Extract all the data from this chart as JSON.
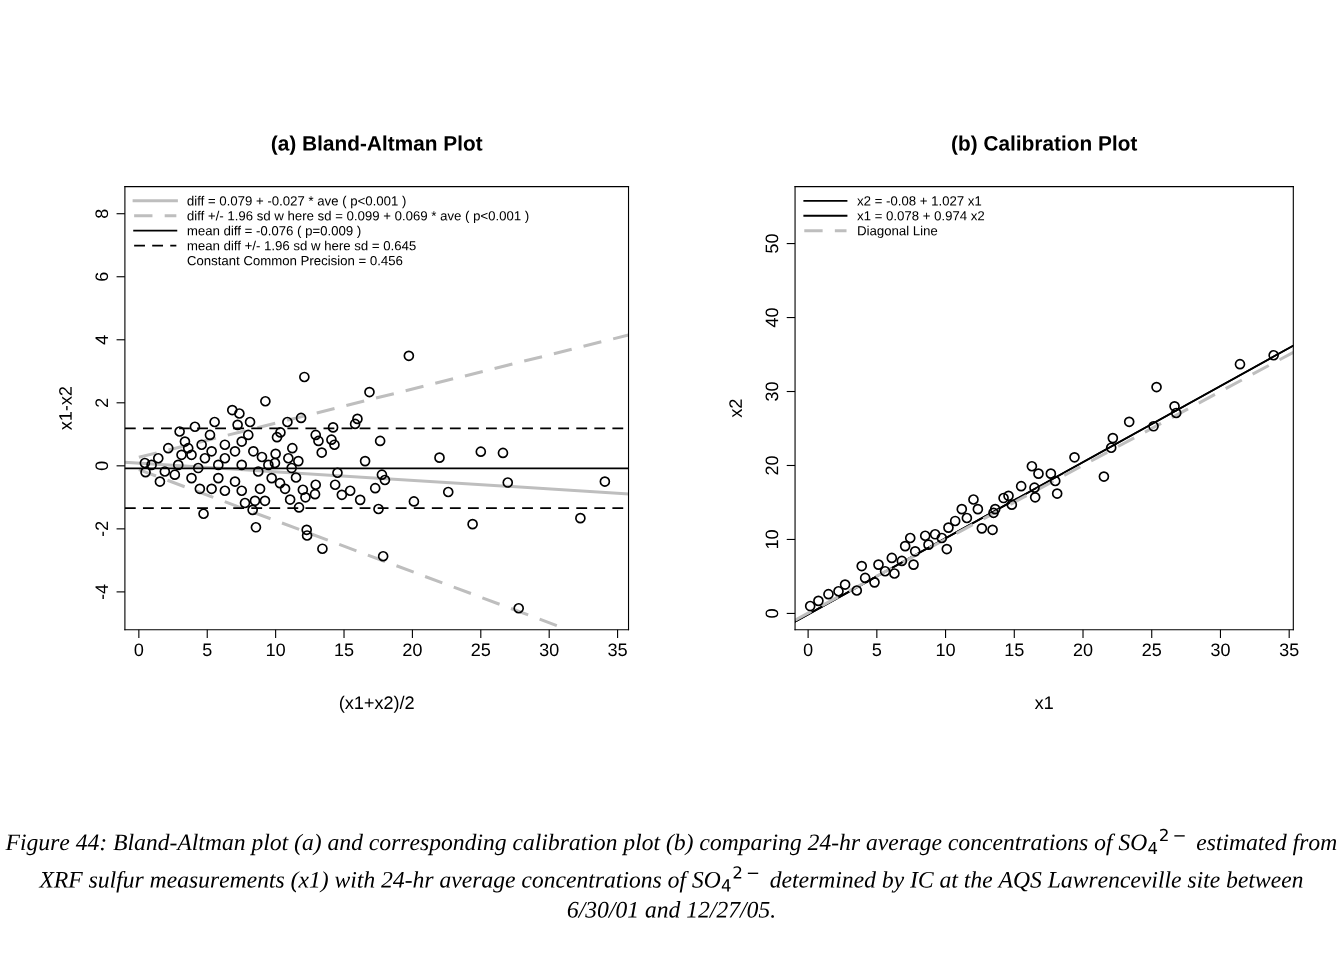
{
  "chart_data": [
    {
      "type": "scatter",
      "title": "(a) Bland-Altman Plot",
      "xlabel": "(x1+x2)/2",
      "ylabel": "x1-x2",
      "xlim": [
        -1.02,
        35.8
      ],
      "ylim": [
        -5.2,
        8.86
      ],
      "xticks": [
        0,
        5,
        10,
        15,
        20,
        25,
        30,
        35
      ],
      "yticks": [
        -4,
        -2,
        0,
        2,
        4,
        6,
        8
      ],
      "grid": false,
      "legend": "top left",
      "series": [
        {
          "marker": "circle",
          "color": "#000000",
          "x": [
            19.74,
            12.1,
            16.86,
            9.25,
            6.83,
            7.35,
            5.54,
            4.1,
            2.98,
            8.13,
            7.22,
            10.86,
            11.86,
            15.98,
            15.81,
            14.2,
            10.35,
            10.1,
            12.93,
            13.13,
            14.08,
            14.3,
            13.37,
            11.22,
            17.64,
            21.98,
            25.0,
            26.62,
            16.54,
            14.52,
            17.77,
            17.99,
            26.97,
            34.07,
            22.62,
            20.11,
            17.28,
            16.18,
            17.52,
            15.45,
            14.84,
            14.35,
            12.93,
            12.88,
            12.18,
            11.71,
            11.06,
            10.69,
            11.99,
            10.32,
            9.22,
            8.49,
            7.76,
            8.32,
            8.56,
            4.73,
            12.27,
            12.3,
            13.42,
            17.86,
            24.4,
            32.28,
            27.77,
            11.49,
            11.66,
            10.0,
            9.0,
            8.37,
            4.46,
            5.32,
            1.54,
            0.49,
            6.29,
            7.52,
            8.86,
            9.71,
            10.93,
            6.29,
            5.2,
            3.37,
            2.15,
            7.52,
            8.0,
            7.03,
            3.85,
            2.63,
            5.81,
            7.03,
            4.83,
            3.85,
            0.93,
            1.42,
            1.9,
            2.88,
            4.34,
            5.81,
            7.52,
            8.73,
            9.47,
            0.44,
            6.29,
            5.32,
            3.12,
            3.61,
            4.59,
            9.95,
            11.17
          ],
          "values": [
            3.49,
            2.82,
            2.34,
            2.05,
            1.77,
            1.66,
            1.39,
            1.24,
            1.09,
            1.39,
            1.3,
            1.39,
            1.52,
            1.49,
            1.33,
            1.22,
            1.06,
            0.91,
            0.98,
            0.79,
            0.83,
            0.67,
            0.42,
            0.56,
            0.79,
            0.26,
            0.45,
            0.41,
            0.15,
            -0.22,
            -0.28,
            -0.45,
            -0.53,
            -0.5,
            -0.83,
            -1.13,
            -0.71,
            -1.08,
            -1.37,
            -0.79,
            -0.92,
            -0.6,
            -0.6,
            -0.9,
            -1.0,
            -1.32,
            -1.07,
            -0.73,
            -0.76,
            -0.55,
            -1.11,
            -1.11,
            -1.18,
            -1.4,
            -1.95,
            -1.52,
            -2.03,
            -2.21,
            -2.63,
            -2.87,
            -1.85,
            -1.66,
            -4.52,
            -0.37,
            0.15,
            0.38,
            0.28,
            0.46,
            -0.73,
            -0.73,
            -0.5,
            -0.2,
            -0.79,
            -0.79,
            -0.73,
            -0.39,
            0.24,
            0.67,
            0.98,
            0.77,
            0.56,
            0.77,
            0.98,
            0.46,
            -0.39,
            -0.28,
            -0.39,
            -0.5,
            0.24,
            0.35,
            0.03,
            0.24,
            -0.18,
            0.03,
            -0.07,
            0.03,
            0.03,
            -0.18,
            0.03,
            0.09,
            0.24,
            0.46,
            0.35,
            0.56,
            0.67,
            0.09,
            -0.07
          ]
        },
        {
          "type": "line",
          "name": "diff = 0.079 + -0.027 * ave ( p<0.001 )",
          "color": "#bebebe",
          "line_style": "solid",
          "x": [
            -1.02,
            35.8
          ],
          "values": [
            0.11,
            -0.89
          ]
        },
        {
          "type": "line",
          "name": "diff +/- 1.96 sd w here sd = 0.099 + 0.069 * ave ( p<0.001 )",
          "color": "#bebebe",
          "line_style": "dashed",
          "x": [
            0,
            35.8
          ],
          "values": [
            0.27,
            4.15
          ]
        },
        {
          "type": "line",
          "color": "#bebebe",
          "line_style": "dashed",
          "x": [
            0,
            31.3
          ],
          "values": [
            -0.12,
            -5.19
          ]
        },
        {
          "type": "line",
          "name": "mean diff = -0.076 ( p=0.009 )",
          "color": "#000000",
          "line_style": "solid",
          "x": [
            -1.02,
            35.8
          ],
          "values": [
            -0.08,
            -0.08
          ]
        },
        {
          "type": "line",
          "name": "mean diff +/- 1.96 sd w here sd = 0.645",
          "color": "#000000",
          "line_style": "dashed",
          "x": [
            -1.02,
            35.8
          ],
          "values": [
            1.19,
            1.19
          ]
        },
        {
          "type": "line",
          "color": "#000000",
          "line_style": "dashed",
          "x": [
            -1.02,
            35.8
          ],
          "values": [
            -1.34,
            -1.34
          ]
        }
      ],
      "annotations": [
        "Constant Common Precision = 0.456"
      ]
    },
    {
      "type": "scatter",
      "title": "(b) Calibration Plot",
      "xlabel": "x1",
      "ylabel": "x2",
      "xlim": [
        -0.95,
        35.3
      ],
      "ylim": [
        -2.2,
        57.7
      ],
      "xticks": [
        0,
        5,
        10,
        15,
        20,
        25,
        30,
        35
      ],
      "yticks": [
        0,
        10,
        20,
        30,
        40,
        50
      ],
      "grid": false,
      "legend": "top left",
      "series": [
        {
          "marker": "circle",
          "color": "#000000",
          "x": [
            33.87,
            31.42,
            25.35,
            26.66,
            26.78,
            25.13,
            23.36,
            22.17,
            22.05,
            21.52,
            19.38,
            16.28,
            16.76,
            17.66,
            17.98,
            18.12,
            15.5,
            16.47,
            16.52,
            14.58,
            14.22,
            12.03,
            11.18,
            12.35,
            13.49,
            12.64,
            13.42,
            10.21,
            11.55,
            10.09,
            8.52,
            7.43,
            7.06,
            7.67,
            6.28,
            4.83,
            3.9,
            3.54,
            0.15,
            1.48,
            2.69,
            5.12,
            6.09,
            9.24,
            10.7,
            8.76,
            5.6,
            6.82,
            4.15,
            2.21,
            0.75,
            7.79,
            9.73,
            13.61,
            14.82
          ],
          "values": [
            34.9,
            33.7,
            30.6,
            28.0,
            27.1,
            25.3,
            25.9,
            23.7,
            22.4,
            18.5,
            21.1,
            19.9,
            18.9,
            18.9,
            17.9,
            16.2,
            17.2,
            17.0,
            15.7,
            15.9,
            15.6,
            15.4,
            14.1,
            14.1,
            13.6,
            11.5,
            11.3,
            11.6,
            12.9,
            8.7,
            10.5,
            10.2,
            9.1,
            6.6,
            5.4,
            4.2,
            6.4,
            3.1,
            1.0,
            2.6,
            3.9,
            6.6,
            7.5,
            10.7,
            12.5,
            9.3,
            5.7,
            7.1,
            4.8,
            3.0,
            1.7,
            8.4,
            10.2,
            14.1,
            14.7
          ]
        },
        {
          "type": "line",
          "name": "x2 = -0.08 + 1.027 x1",
          "color": "#000000",
          "line_style": "solid",
          "x": [
            -0.95,
            35.3
          ],
          "values": [
            -1.1,
            36.2
          ]
        },
        {
          "type": "line",
          "name": "x1 = 0.078 + 0.974 x2",
          "color": "#000000",
          "line_style": "solid",
          "x": [
            -0.95,
            35.3
          ],
          "values": [
            -1.1,
            36.2
          ]
        },
        {
          "type": "line",
          "name": "Diagonal Line",
          "color": "#bebebe",
          "line_style": "dashed",
          "x": [
            -0.95,
            35.3
          ],
          "values": [
            -0.9,
            35.3
          ]
        }
      ],
      "annotations": [
        "Figure 44: Bland-Altman plot (a) and corresponding calibration plot (b) comparing 24-hr average concentrations of SO$_{4}$$^{2−}$ estimated from XRF sulfur measurements (x1) with 24-hr average concentrations of SO$_{4}$$^{2−}$ determined by IC at the AQS Lawrenceville site between 6/30/01 and 12/27/05."
      ]
    }
  ]
}
